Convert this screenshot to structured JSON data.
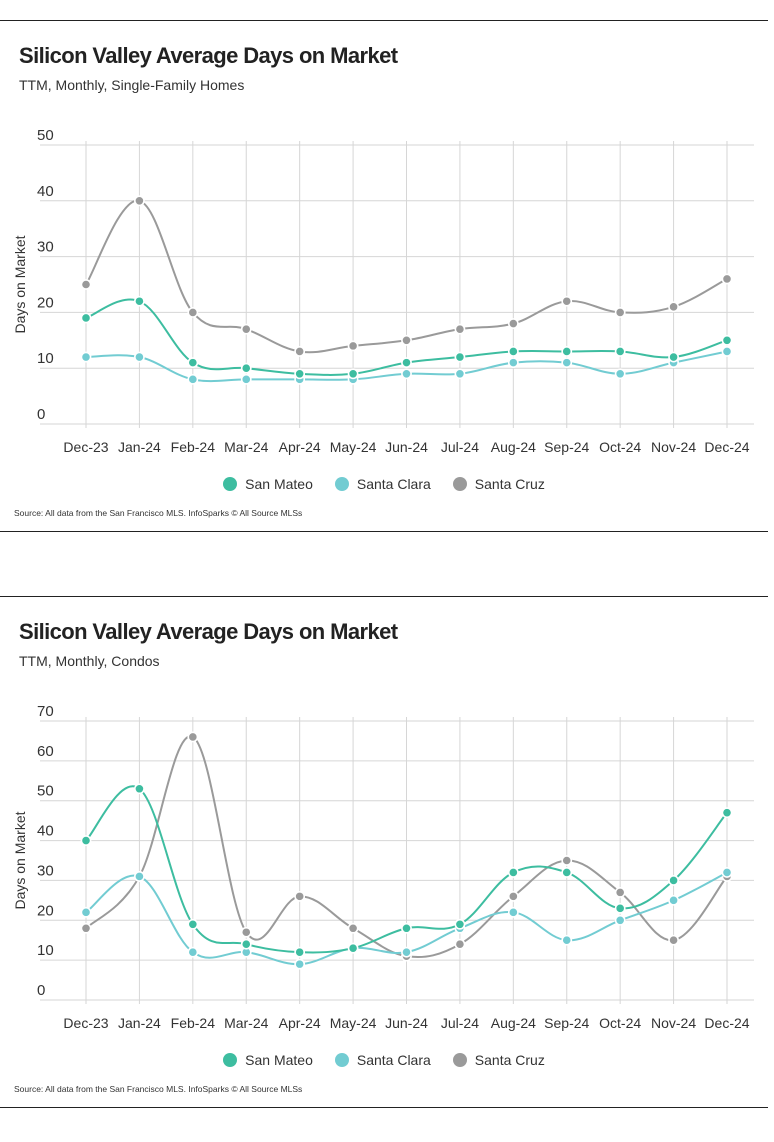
{
  "charts": [
    {
      "title": "Silicon Valley Average Days on Market",
      "subtitle": "TTM, Monthly, Single-Family Homes",
      "source": "Source:  All data from the San Francisco MLS. InfoSparks © All Source MLSs"
    },
    {
      "title": "Silicon Valley Average Days on Market",
      "subtitle": "TTM, Monthly, Condos",
      "source": "Source:  All data from the San Francisco MLS. InfoSparks © All Source MLSs"
    }
  ],
  "colors": {
    "San Mateo": "#3dbda0",
    "Santa Clara": "#72ccd2",
    "Santa Cruz": "#9a9a9a",
    "grid": "#d6d6d6",
    "axis_text": "#333333"
  },
  "chart_data": [
    {
      "type": "line",
      "title": "Silicon Valley Average Days on Market",
      "subtitle": "TTM, Monthly, Single-Family Homes",
      "categories": [
        "Dec-23",
        "Jan-24",
        "Feb-24",
        "Mar-24",
        "Apr-24",
        "May-24",
        "Jun-24",
        "Jul-24",
        "Aug-24",
        "Sep-24",
        "Oct-24",
        "Nov-24",
        "Dec-24"
      ],
      "ylabel": "Days on Market",
      "xlabel": "",
      "ylim": [
        0,
        50
      ],
      "yticks": [
        0,
        10,
        20,
        30,
        40,
        50
      ],
      "grid": true,
      "legend_position": "bottom",
      "series": [
        {
          "name": "San Mateo",
          "values": [
            19,
            22,
            11,
            10,
            9,
            9,
            11,
            12,
            13,
            13,
            13,
            12,
            15
          ]
        },
        {
          "name": "Santa Clara",
          "values": [
            12,
            12,
            8,
            8,
            8,
            8,
            9,
            9,
            11,
            11,
            9,
            11,
            13
          ]
        },
        {
          "name": "Santa Cruz",
          "values": [
            25,
            40,
            20,
            17,
            13,
            14,
            15,
            17,
            18,
            22,
            20,
            21,
            26
          ]
        }
      ]
    },
    {
      "type": "line",
      "title": "Silicon Valley Average Days on Market",
      "subtitle": "TTM, Monthly, Condos",
      "categories": [
        "Dec-23",
        "Jan-24",
        "Feb-24",
        "Mar-24",
        "Apr-24",
        "May-24",
        "Jun-24",
        "Jul-24",
        "Aug-24",
        "Sep-24",
        "Oct-24",
        "Nov-24",
        "Dec-24"
      ],
      "ylabel": "Days on Market",
      "xlabel": "",
      "ylim": [
        0,
        70
      ],
      "yticks": [
        0,
        10,
        20,
        30,
        40,
        50,
        60,
        70
      ],
      "grid": true,
      "legend_position": "bottom",
      "series": [
        {
          "name": "San Mateo",
          "values": [
            40,
            53,
            19,
            14,
            12,
            13,
            18,
            19,
            32,
            32,
            23,
            30,
            47
          ]
        },
        {
          "name": "Santa Clara",
          "values": [
            22,
            31,
            12,
            12,
            9,
            13,
            12,
            18,
            22,
            15,
            20,
            25,
            32
          ]
        },
        {
          "name": "Santa Cruz",
          "values": [
            18,
            31,
            66,
            17,
            26,
            18,
            11,
            14,
            26,
            35,
            27,
            15,
            31
          ]
        }
      ]
    }
  ]
}
